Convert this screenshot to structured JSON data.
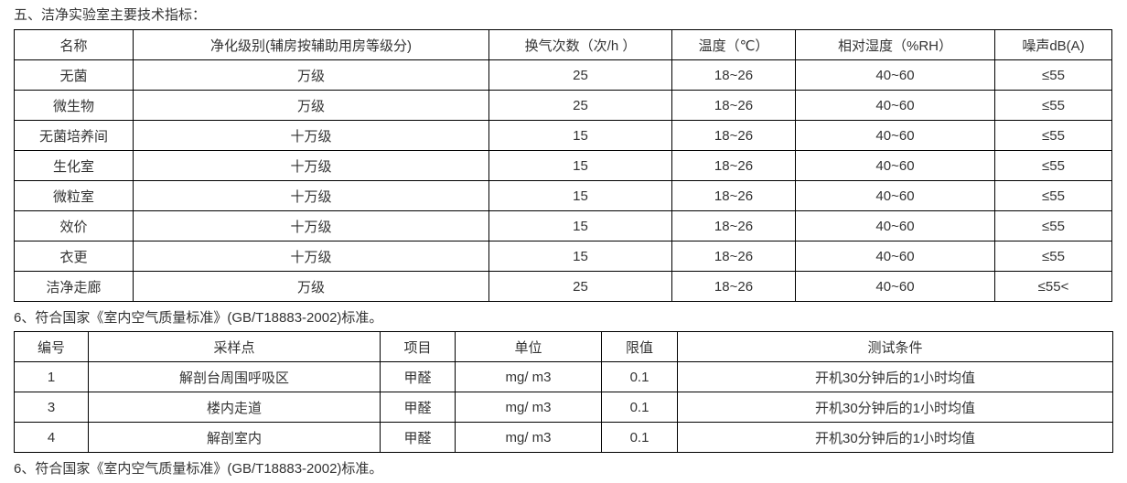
{
  "heading1": "五、洁净实验室主要技术指标：",
  "table1": {
    "headers": [
      "名称",
      "净化级别(辅房按辅助用房等级分)",
      "换气次数（次/h ）",
      "温度（℃）",
      "相对湿度（%RH）",
      "噪声dB(A)"
    ],
    "rows": [
      [
        "无菌",
        "万级",
        "25",
        "18~26",
        "40~60",
        "≤55"
      ],
      [
        "微生物",
        "万级",
        "25",
        "18~26",
        "40~60",
        "≤55"
      ],
      [
        "无菌培养间",
        "十万级",
        "15",
        "18~26",
        "40~60",
        "≤55"
      ],
      [
        "生化室",
        "十万级",
        "15",
        "18~26",
        "40~60",
        "≤55"
      ],
      [
        "微粒室",
        "十万级",
        "15",
        "18~26",
        "40~60",
        "≤55"
      ],
      [
        "效价",
        "十万级",
        "15",
        "18~26",
        "40~60",
        "≤55"
      ],
      [
        "衣更",
        "十万级",
        "15",
        "18~26",
        "40~60",
        "≤55"
      ],
      [
        "洁净走廊",
        "万级",
        "25",
        "18~26",
        "40~60",
        "≤55<"
      ]
    ]
  },
  "heading2": "6、符合国家《室内空气质量标准》(GB/T18883-2002)标准。",
  "table2": {
    "headers": [
      "编号",
      "采样点",
      "项目",
      "单位",
      "限值",
      "测试条件"
    ],
    "rows": [
      [
        "1",
        "解剖台周围呼吸区",
        "甲醛",
        "mg/ m3",
        "0.1",
        "开机30分钟后的1小时均值"
      ],
      [
        "3",
        "楼内走道",
        "甲醛",
        "mg/ m3",
        "0.1",
        "开机30分钟后的1小时均值"
      ],
      [
        "4",
        "解剖室内",
        "甲醛",
        "mg/ m3",
        "0.1",
        "开机30分钟后的1小时均值"
      ]
    ]
  },
  "heading3": "6、符合国家《室内空气质量标准》(GB/T18883-2002)标准。"
}
